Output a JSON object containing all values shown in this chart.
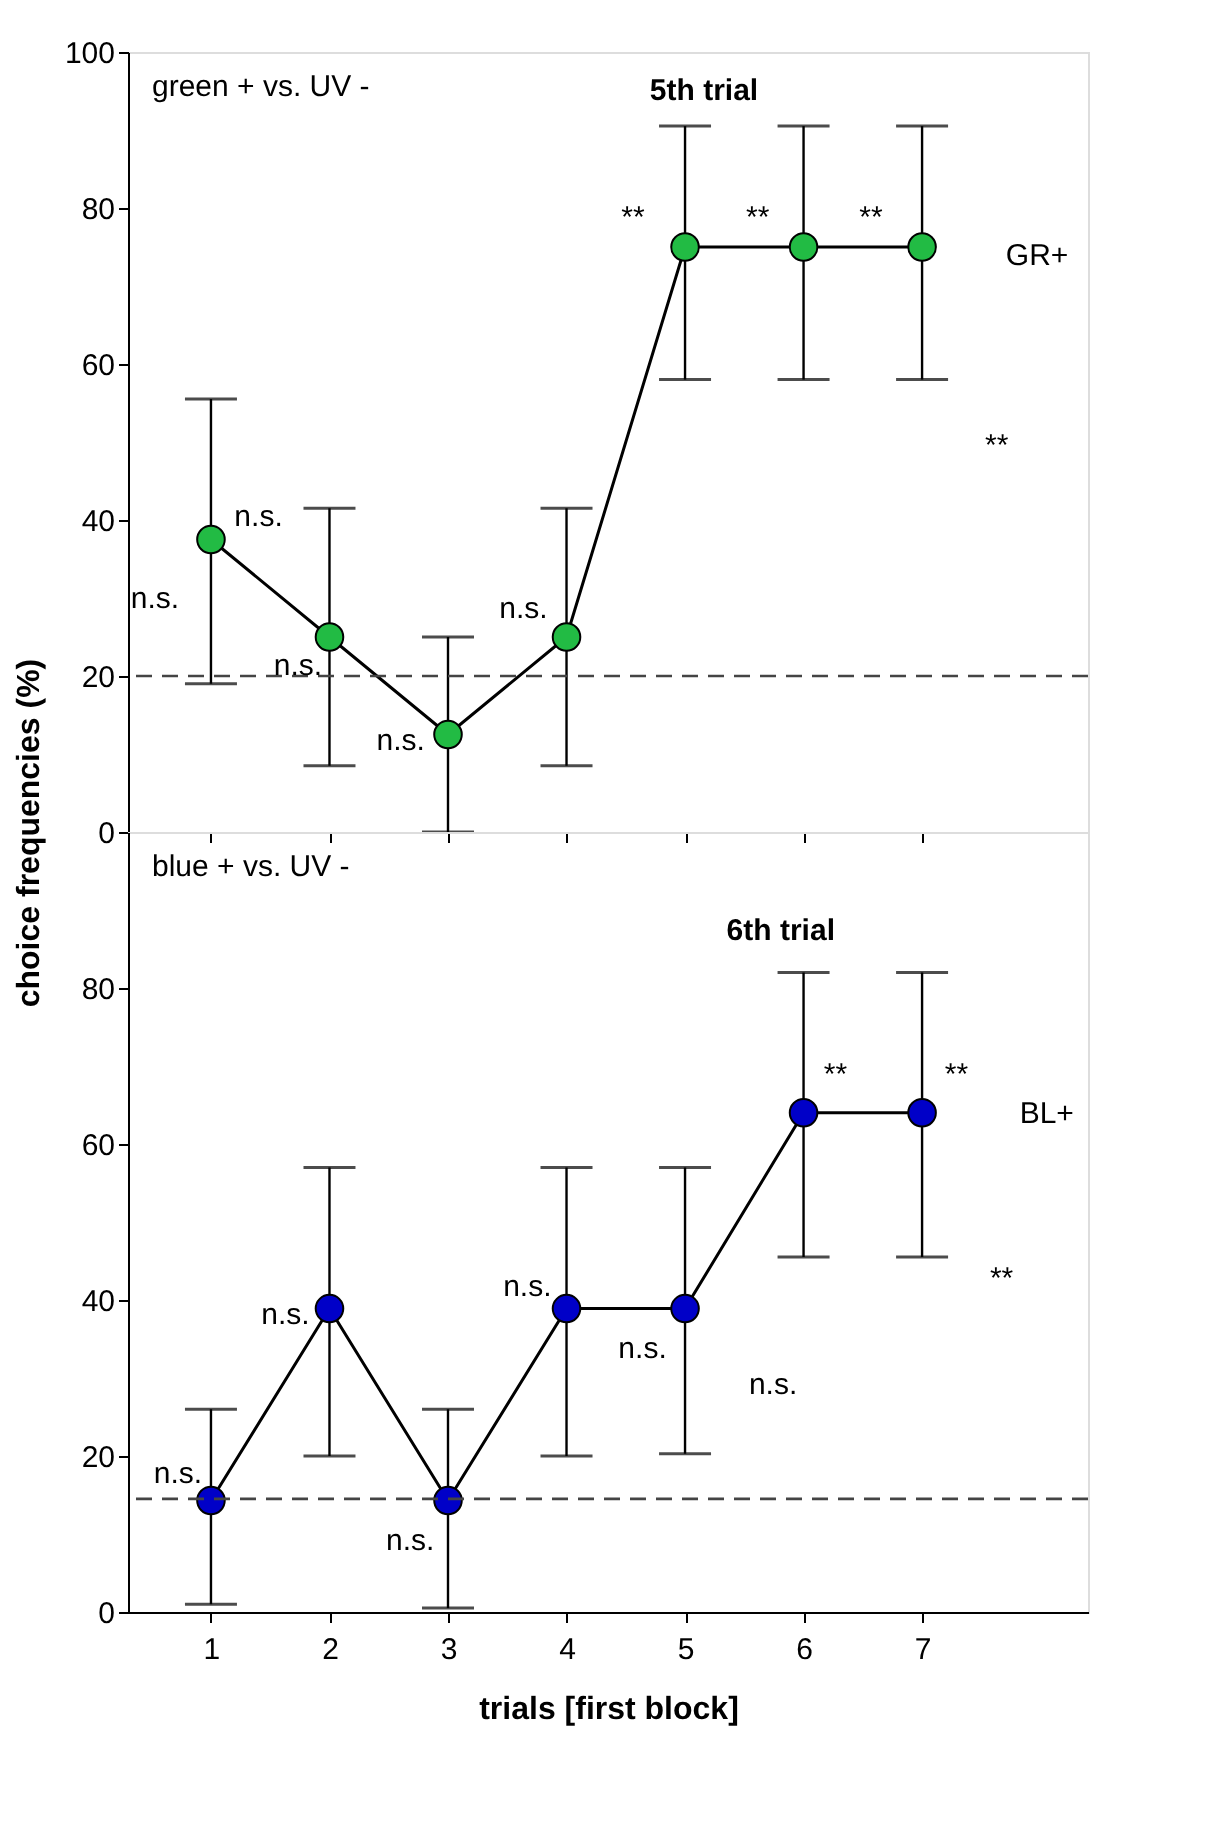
{
  "chart_data": [
    {
      "type": "line",
      "title": "green + vs. UV -",
      "subtitle": "5th trial",
      "ylabel": "choice frequencies (%)",
      "x": [
        1,
        2,
        3,
        4,
        5,
        6,
        7
      ],
      "series": [
        {
          "color": "#22bb44",
          "values": [
            37.5,
            25,
            12.5,
            25,
            75,
            75,
            75
          ],
          "errors": [
            [
              19,
              55.5
            ],
            [
              8.5,
              41.5
            ],
            [
              0,
              25
            ],
            [
              8.5,
              41.5
            ],
            [
              58,
              90.5
            ],
            [
              58,
              90.5
            ],
            [
              58,
              90.5
            ]
          ]
        }
      ],
      "xlim": [
        0.3,
        8.4
      ],
      "xticks": [
        1,
        2,
        3,
        4,
        5,
        6,
        7
      ],
      "ylim": [
        0,
        100
      ],
      "yticks": [
        0,
        20,
        40,
        60,
        80,
        100
      ],
      "tick_labels": "y",
      "marker": "circle",
      "line_style": "solid",
      "ref_lines": [
        {
          "axis": "y",
          "value": 20,
          "line_style": "dashed"
        }
      ],
      "annotations": [
        "n.s.",
        "n.s.",
        "n.s.",
        "n.s.",
        "n.s.",
        "**",
        "**",
        "**",
        "GR+",
        "**"
      ]
    },
    {
      "type": "line",
      "title": "blue + vs. UV -",
      "subtitle": "6th trial",
      "xlabel": "trials [first block]",
      "x": [
        1,
        2,
        3,
        4,
        5,
        6,
        7
      ],
      "series": [
        {
          "color": "#0000c8",
          "values": [
            14.3,
            38.9,
            14.3,
            38.9,
            38.9,
            64,
            64
          ],
          "errors": [
            [
              1,
              26
            ],
            [
              20,
              57
            ],
            [
              0.5,
              26
            ],
            [
              20,
              57
            ],
            [
              20.3,
              57
            ],
            [
              45.5,
              82
            ],
            [
              45.5,
              82
            ]
          ]
        }
      ],
      "xlim": [
        0.3,
        8.4
      ],
      "xticks": [
        1,
        2,
        3,
        4,
        5,
        6,
        7
      ],
      "ylim": [
        0,
        100
      ],
      "yticks": [
        0,
        20,
        40,
        60,
        80
      ],
      "marker": "circle",
      "line_style": "solid",
      "ref_lines": [
        {
          "axis": "y",
          "value": 14.5,
          "line_style": "dashed"
        }
      ],
      "annotations": [
        "n.s.",
        "n.s.",
        "n.s.",
        "n.s.",
        "n.s.",
        "n.s.",
        "**",
        "**",
        "BL+",
        "**"
      ]
    }
  ]
}
